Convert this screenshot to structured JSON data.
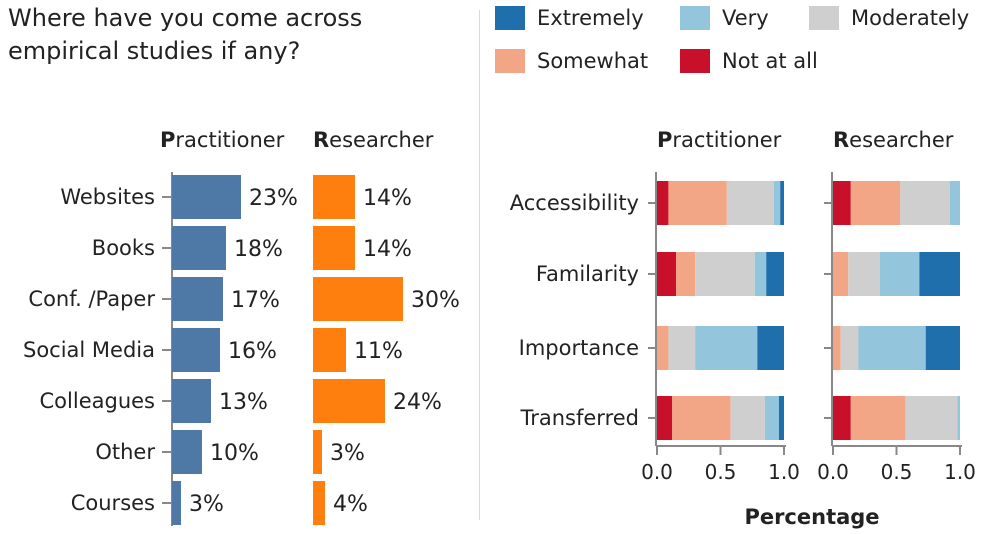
{
  "title_line1": "Where have you come across",
  "title_line2": "empirical studies if any?",
  "legend": [
    {
      "label": "Extremely",
      "color": "#1f6fad"
    },
    {
      "label": "Very",
      "color": "#93c6dd"
    },
    {
      "label": "Moderately",
      "color": "#cfcfcf"
    },
    {
      "label": "Somewhat",
      "color": "#f3a685"
    },
    {
      "label": "Not at all",
      "color": "#c9102a"
    }
  ],
  "chart_data": [
    {
      "type": "bar",
      "orientation": "horizontal",
      "title": "Where have you come across empirical studies if any?",
      "categories": [
        "Websites",
        "Books",
        "Conf. /Paper",
        "Social Media",
        "Colleagues",
        "Other",
        "Courses"
      ],
      "series": [
        {
          "name": "Practitioner",
          "bold_initial": "P",
          "rest": "ractitioner",
          "color": "#4e79a7",
          "values": [
            23,
            18,
            17,
            16,
            13,
            10,
            3
          ],
          "labels": [
            "23%",
            "18%",
            "17%",
            "16%",
            "13%",
            "10%",
            "3%"
          ]
        },
        {
          "name": "Researcher",
          "bold_initial": "R",
          "rest": "esearcher",
          "color": "#ff7f0e",
          "values": [
            14,
            14,
            30,
            11,
            24,
            3,
            4
          ],
          "labels": [
            "14%",
            "14%",
            "30%",
            "11%",
            "24%",
            "3%",
            "4%"
          ]
        }
      ],
      "unit": "%"
    },
    {
      "type": "bar",
      "orientation": "horizontal",
      "stacked": true,
      "xlabel": "Percentage",
      "xlim": [
        0,
        1
      ],
      "x_ticks": [
        "0.0",
        "0.5",
        "1.0"
      ],
      "categories": [
        "Accessibility",
        "Familarity",
        "Importance",
        "Transferred"
      ],
      "stack_order": [
        "Not at all",
        "Somewhat",
        "Moderately",
        "Very",
        "Extremely"
      ],
      "panels": [
        {
          "name": "Practitioner",
          "bold_initial": "P",
          "rest": "ractitioner",
          "rows": [
            [
              0.09,
              0.46,
              0.37,
              0.05,
              0.03
            ],
            [
              0.15,
              0.15,
              0.47,
              0.09,
              0.14
            ],
            [
              0.0,
              0.09,
              0.21,
              0.49,
              0.21
            ],
            [
              0.12,
              0.46,
              0.27,
              0.11,
              0.04
            ]
          ]
        },
        {
          "name": "Researcher",
          "bold_initial": "R",
          "rest": "esearcher",
          "rows": [
            [
              0.14,
              0.39,
              0.39,
              0.08,
              0.0
            ],
            [
              0.0,
              0.12,
              0.25,
              0.31,
              0.32
            ],
            [
              0.0,
              0.06,
              0.14,
              0.53,
              0.27
            ],
            [
              0.14,
              0.43,
              0.41,
              0.02,
              0.0
            ]
          ]
        }
      ]
    }
  ]
}
